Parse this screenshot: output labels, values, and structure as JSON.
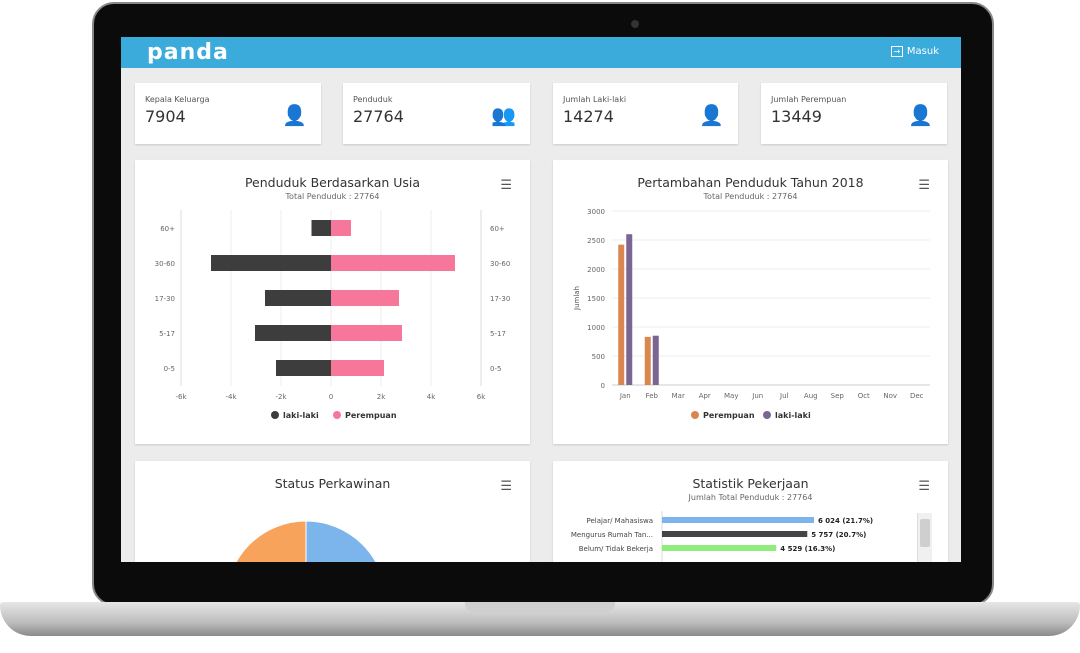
{
  "header": {
    "logo": "panda",
    "login_label": "Masuk",
    "color": "#3aabdb"
  },
  "cards": [
    {
      "label": "Kepala Keluarga",
      "value": "7904",
      "icon": "user-icon",
      "color": "#f0a03a"
    },
    {
      "label": "Penduduk",
      "value": "27764",
      "icon": "users-icon",
      "color": "#2e9e4f"
    },
    {
      "label": "Jumlah Laki-laki",
      "value": "14274",
      "icon": "user-icon",
      "color": "#e0303a"
    },
    {
      "label": "Jumlah Perempuan",
      "value": "13449",
      "icon": "user-icon",
      "color": "#f050d8"
    }
  ],
  "panels": {
    "usia": {
      "title": "Penduduk Berdasarkan Usia",
      "subtitle": "Total Penduduk : 27764"
    },
    "pertambahan": {
      "title": "Pertambahan Penduduk Tahun 2018",
      "subtitle": "Total Penduduk : 27764"
    },
    "perkawinan": {
      "title": "Status Perkawinan"
    },
    "pekerjaan": {
      "title": "Statistik Pekerjaan",
      "subtitle": "Jumlah Total Penduduk : 27764"
    }
  },
  "chart_data": [
    {
      "type": "bar",
      "orientation": "horizontal",
      "categories": [
        "60+",
        "30-60",
        "17-30",
        "5-17",
        "0-5"
      ],
      "series": [
        {
          "name": "laki-laki",
          "color": "#3d3d3d",
          "values": [
            -780,
            -4800,
            -2640,
            -3040,
            -2200
          ]
        },
        {
          "name": "Perempuan",
          "color": "#f7779b",
          "values": [
            800,
            4960,
            2720,
            2840,
            2120
          ]
        }
      ],
      "xlim": [
        -6000,
        6000
      ],
      "xticks": [
        "-6k",
        "-4k",
        "-2k",
        "0",
        "2k",
        "4k",
        "6k"
      ],
      "legend": "bottom",
      "grid": true
    },
    {
      "type": "bar",
      "categories": [
        "Jan",
        "Feb",
        "Mar",
        "Apr",
        "May",
        "Jun",
        "Jul",
        "Aug",
        "Sep",
        "Oct",
        "Nov",
        "Dec"
      ],
      "series": [
        {
          "name": "Perempuan",
          "color": "#d9874f",
          "values": [
            2420,
            830,
            0,
            0,
            0,
            0,
            0,
            0,
            0,
            0,
            0,
            0
          ]
        },
        {
          "name": "laki-laki",
          "color": "#7b6593",
          "values": [
            2600,
            850,
            0,
            0,
            0,
            0,
            0,
            0,
            0,
            0,
            0,
            0
          ]
        }
      ],
      "ylabel": "Jumlah",
      "ylim": [
        0,
        3000
      ],
      "yticks": [
        "0",
        "500",
        "1000",
        "1500",
        "2000",
        "2500",
        "3000"
      ],
      "legend": "bottom",
      "grid": true
    },
    {
      "type": "pie",
      "colors": [
        "#f7a35c",
        "#7cb5ec"
      ]
    },
    {
      "type": "bar",
      "orientation": "horizontal",
      "categories": [
        "Pelajar/ Mahasiswa",
        "Mengurus Rumah Tan...",
        "Belum/ Tidak Bekerja"
      ],
      "values": [
        6024,
        5757,
        4529
      ],
      "labels": [
        "6 024 (21.7%)",
        "5 757 (20.7%)",
        "4 529 (16.3%)"
      ],
      "colors": [
        "#7cb5ec",
        "#434348",
        "#90ed7d"
      ]
    }
  ]
}
